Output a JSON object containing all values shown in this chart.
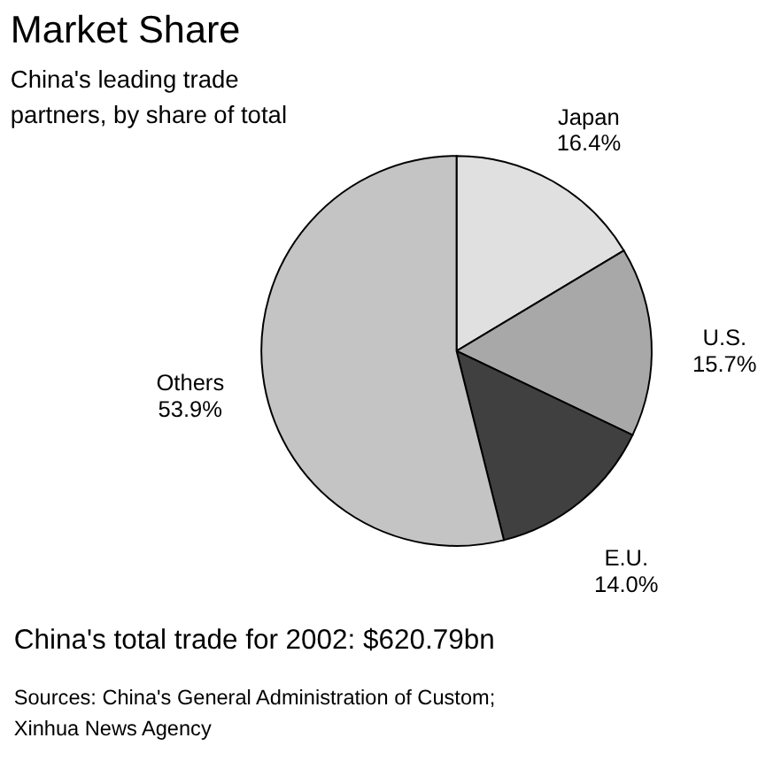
{
  "chart_data": {
    "type": "pie",
    "title": "Market Share",
    "subtitle": "China's leading trade\npartners, by share of total",
    "categories": [
      "Japan",
      "U.S.",
      "E.U.",
      "Others"
    ],
    "values": [
      16.4,
      15.7,
      14.0,
      53.9
    ],
    "value_labels": [
      "16.4%",
      "15.7%",
      "14.0%",
      "53.9%"
    ],
    "colors": [
      "#e0e0e0",
      "#a8a8a8",
      "#404040",
      "#c4c4c4"
    ],
    "annotations": [
      "China's total trade for 2002: $620.79bn",
      "Sources: China's General Administration of Custom;\nXinhua News Agency"
    ]
  }
}
